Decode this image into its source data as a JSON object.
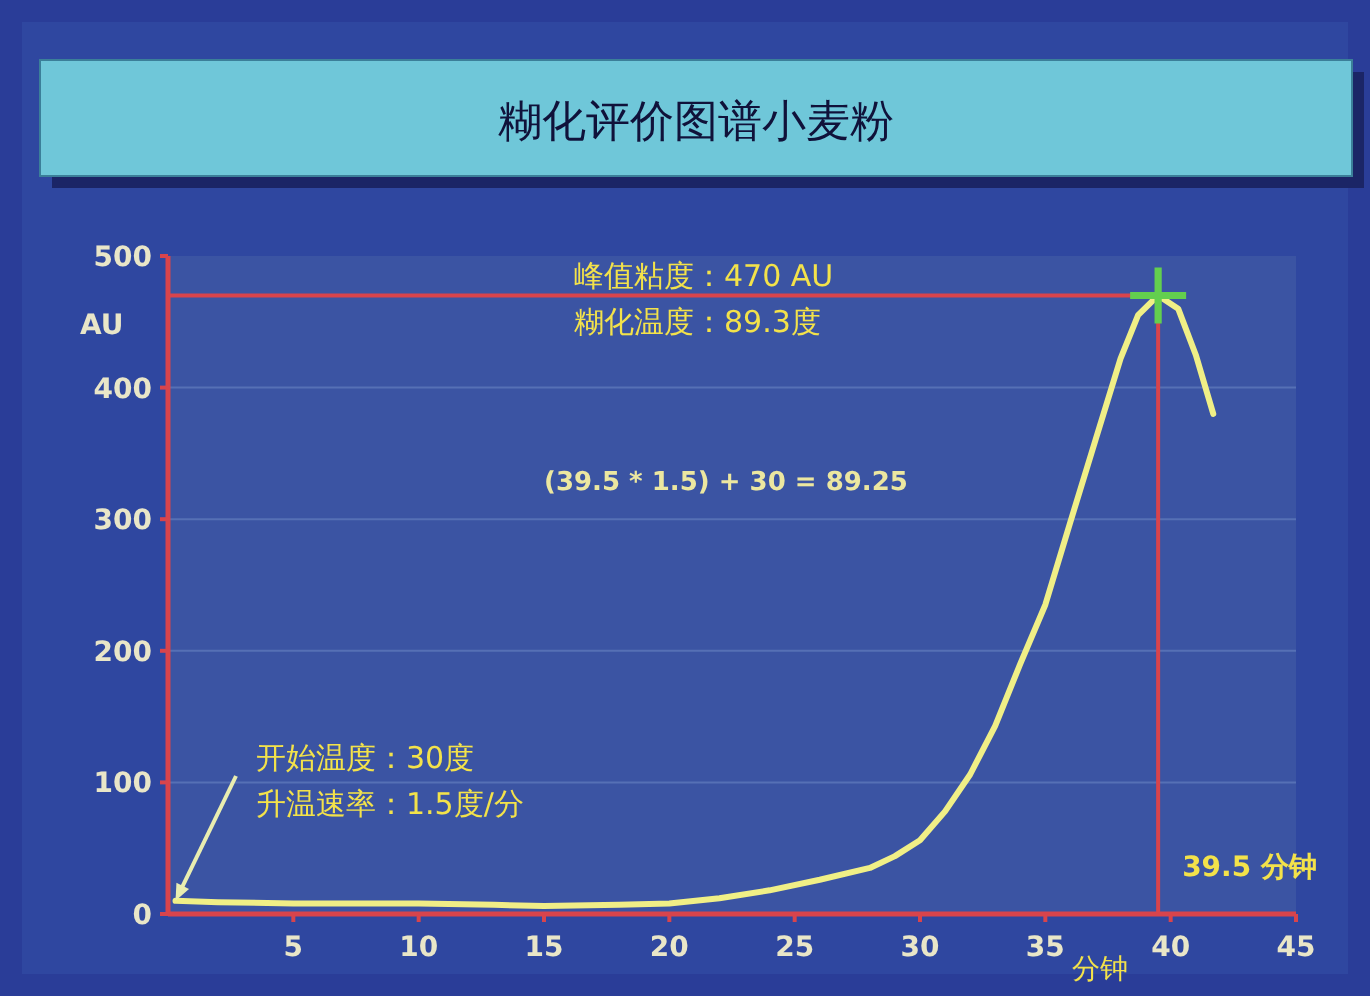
{
  "chart_data": {
    "type": "line",
    "title": "糊化评价图谱小麦粉",
    "xlabel": "分钟",
    "ylabel": "AU",
    "xlim": [
      0,
      45
    ],
    "xticks": [
      5,
      10,
      15,
      20,
      25,
      30,
      35,
      40,
      45
    ],
    "ylim": [
      0,
      500
    ],
    "yticks": [
      0,
      100,
      200,
      300,
      400,
      500
    ],
    "grid": "y",
    "line_style": "solid",
    "series": [
      {
        "color": "#f0ef86",
        "x": [
          0.3,
          2,
          5,
          8,
          10,
          13,
          15,
          18,
          20,
          22,
          24,
          26,
          28,
          29,
          30,
          31,
          32,
          33,
          34,
          35,
          36,
          37,
          38,
          38.7,
          39.5,
          40.3,
          41,
          41.7
        ],
        "values": [
          10,
          9,
          8,
          8,
          8,
          7,
          6,
          7,
          8,
          12,
          18,
          26,
          35,
          44,
          56,
          78,
          106,
          143,
          190,
          235,
          298,
          360,
          422,
          455,
          470,
          460,
          425,
          380
        ]
      },
      {
        "type": "scatter",
        "color": "#63cf4e",
        "marker": "cross",
        "x": [
          39.5
        ],
        "values": [
          470
        ]
      }
    ],
    "ref_lines": [
      {
        "axis": "x",
        "value": 39.5,
        "label": "39.5 分钟",
        "color": "#d8444c"
      },
      {
        "axis": "y",
        "value": 470,
        "color": "#d8444c"
      }
    ],
    "annotations": [
      "峰值粘度：470 AU",
      "糊化温度：89.3度",
      "(39.5 * 1.5) + 30 = 89.25",
      {
        "text": "开始温度：30度",
        "x": 0.3,
        "y": 10
      },
      "升温速率：1.5度/分"
    ]
  }
}
